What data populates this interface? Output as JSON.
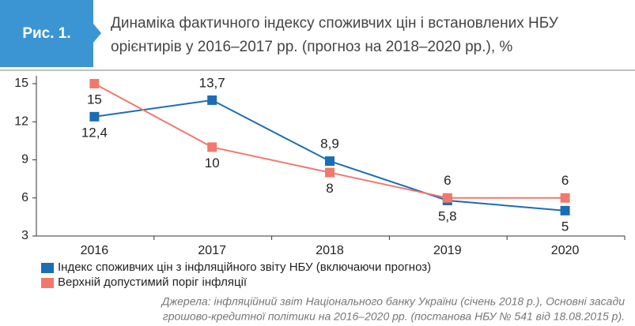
{
  "chart_data": {
    "type": "line",
    "figure_label": "Рис. 1.",
    "title": [
      "Динаміка фактичного індексу споживчих цін і встановлених НБУ",
      "орієнтирів у 2016–2017 рр. (прогноз на 2018–2020 рр.), %"
    ],
    "categories": [
      "2016",
      "2017",
      "2018",
      "2019",
      "2020"
    ],
    "series": [
      {
        "name": "Індекс споживчих цін з інфляційного звіту НБУ (включаючи прогноз)",
        "color": "#1b6db5",
        "values": [
          12.4,
          13.7,
          8.9,
          5.8,
          5
        ],
        "value_labels": [
          "12,4",
          "13,7",
          "8,9",
          "5,8",
          "5"
        ]
      },
      {
        "name": "Верхній допустимий поріг інфляції",
        "color": "#f1786c",
        "values": [
          15,
          10,
          8,
          6,
          6
        ]
      }
    ],
    "ylim": [
      3,
      15
    ],
    "yticks": [
      3,
      6,
      9,
      12,
      15
    ],
    "grid": false,
    "source": [
      "Джерела: інфляційний звіт Національного банку України (січень 2018 р.), Основні засади",
      "грошово-кредитної політики на 2016–2020 рр. (постанова НБУ № 541 від 18.08.2015 р)."
    ]
  }
}
